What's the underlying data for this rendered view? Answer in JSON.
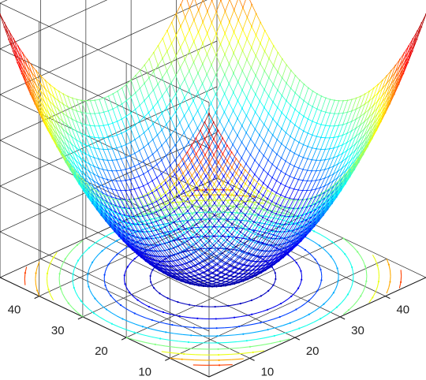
{
  "chart_data": {
    "type": "surface",
    "function": "z = (x - 25)^2 + (y - 25)^2 (paraboloid mesh with contour projection)",
    "grid": true,
    "colormap": "jet",
    "colormap_stops": [
      "#00008f",
      "#0000ff",
      "#00ffff",
      "#ffff00",
      "#ff0000",
      "#800000"
    ],
    "x_ticks": [
      10,
      20,
      30,
      40
    ],
    "y_ticks": [
      10,
      20,
      30,
      40
    ],
    "x_tick_labels": [
      "10",
      "20",
      "30",
      "40"
    ],
    "y_tick_labels": [
      "10",
      "20",
      "30",
      "40"
    ],
    "x_range": [
      1,
      49
    ],
    "y_range": [
      1,
      49
    ],
    "z_range": [
      0,
      1200
    ],
    "mesh_resolution": 49,
    "contour_levels": [
      100,
      200,
      300,
      400,
      500,
      600,
      700,
      800,
      900
    ],
    "title": "",
    "xlabel": "",
    "ylabel": "",
    "zlabel": ""
  }
}
